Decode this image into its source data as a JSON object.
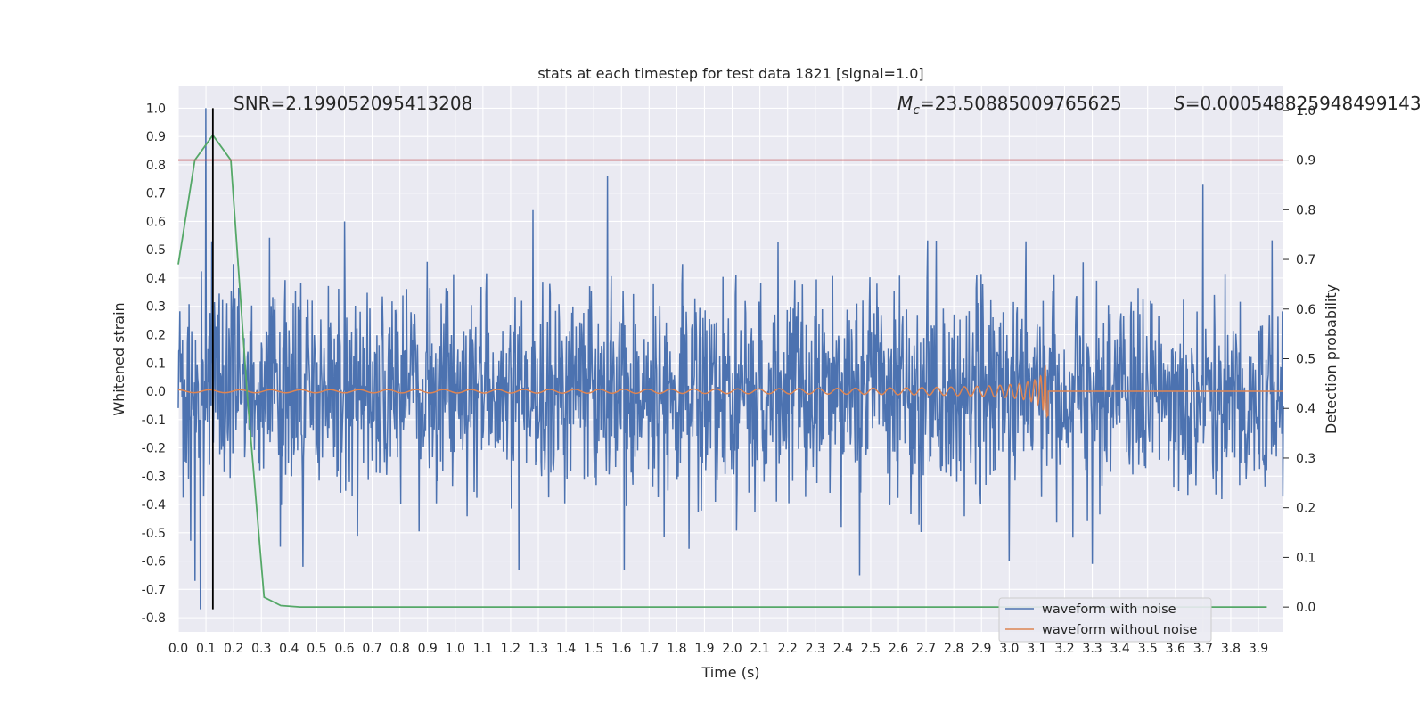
{
  "chart_data": {
    "type": "line",
    "title": "stats at each timestep for test data 1821 [signal=1.0]",
    "xlabel": "Time (s)",
    "ylabel": "Whitened strain",
    "y2label": "Detection probability",
    "xlim": [
      0.0,
      3.99
    ],
    "ylim": [
      -0.85,
      1.08
    ],
    "y2lim": [
      -0.05,
      1.05
    ],
    "xticks": [
      "0.0",
      "0.1",
      "0.2",
      "0.3",
      "0.4",
      "0.5",
      "0.6",
      "0.7",
      "0.8",
      "0.9",
      "1.0",
      "1.1",
      "1.2",
      "1.3",
      "1.4",
      "1.5",
      "1.6",
      "1.7",
      "1.8",
      "1.9",
      "2.0",
      "2.1",
      "2.2",
      "2.3",
      "2.4",
      "2.5",
      "2.6",
      "2.7",
      "2.8",
      "2.9",
      "3.0",
      "3.1",
      "3.2",
      "3.3",
      "3.4",
      "3.5",
      "3.6",
      "3.7",
      "3.8",
      "3.9"
    ],
    "yticks": [
      "1.0",
      "0.9",
      "0.8",
      "0.7",
      "0.6",
      "0.5",
      "0.4",
      "0.3",
      "0.2",
      "0.1",
      "0.0",
      "-0.1",
      "-0.2",
      "-0.3",
      "-0.4",
      "-0.5",
      "-0.6",
      "-0.7",
      "-0.8"
    ],
    "y2ticks": [
      "1.0",
      "0.9",
      "0.8",
      "0.7",
      "0.6",
      "0.5",
      "0.4",
      "0.3",
      "0.2",
      "0.1",
      "0.0"
    ],
    "annotations": {
      "snr": "SNR=2.199052095413208",
      "mc_symbol": "M",
      "mc_sub": "c",
      "mc_value": "=23.50885009765625",
      "s_symbol": "S",
      "s_value": "=0.000548825948499143"
    },
    "threshold": {
      "axis": "right",
      "value": 0.9,
      "color": "#c44e52"
    },
    "marker_line": {
      "x": 0.125,
      "y_from": -0.77,
      "y_to": 1.0,
      "color": "#000000"
    },
    "series": [
      {
        "name": "waveform with noise",
        "axis": "left",
        "color": "#4c72b0",
        "kind": "noise",
        "std": 0.18,
        "samples": 2048,
        "peaks": [
          {
            "x": 0.1,
            "y": 1.0
          },
          {
            "x": 0.12,
            "y": 0.53
          },
          {
            "x": 1.55,
            "y": 0.76
          },
          {
            "x": 3.7,
            "y": 0.73
          },
          {
            "x": 0.08,
            "y": -0.77
          },
          {
            "x": 0.06,
            "y": -0.67
          },
          {
            "x": 2.46,
            "y": -0.65
          },
          {
            "x": 1.61,
            "y": -0.63
          },
          {
            "x": 1.23,
            "y": -0.63
          },
          {
            "x": 0.45,
            "y": -0.62
          },
          {
            "x": 3.3,
            "y": -0.61
          },
          {
            "x": 3.0,
            "y": -0.6
          },
          {
            "x": 3.06,
            "y": 0.53
          },
          {
            "x": 1.28,
            "y": 0.64
          },
          {
            "x": 0.6,
            "y": 0.6
          }
        ]
      },
      {
        "name": "waveform without noise",
        "axis": "left",
        "color": "#dd8452",
        "kind": "chirp",
        "merger_time": 3.14,
        "start_amplitude": 0.005,
        "peak_amplitude": 0.09,
        "samples": 3000
      },
      {
        "name": "detection probability",
        "axis": "right",
        "color": "#55a868",
        "x": [
          0.0,
          0.06,
          0.125,
          0.19,
          0.25,
          0.31,
          0.37,
          0.44,
          0.5,
          1.0,
          2.0,
          3.0,
          3.93
        ],
        "values": [
          0.69,
          0.9,
          0.95,
          0.9,
          0.42,
          0.02,
          0.003,
          0.0,
          0.0,
          0.0,
          0.0,
          0.0,
          0.0
        ]
      }
    ],
    "legend": {
      "placement": "lower-right",
      "entries": [
        {
          "label": "waveform with noise",
          "color": "#4c72b0"
        },
        {
          "label": "waveform without noise",
          "color": "#dd8452"
        }
      ]
    },
    "style": {
      "background": "#eaeaf2",
      "grid": "#ffffff"
    }
  }
}
